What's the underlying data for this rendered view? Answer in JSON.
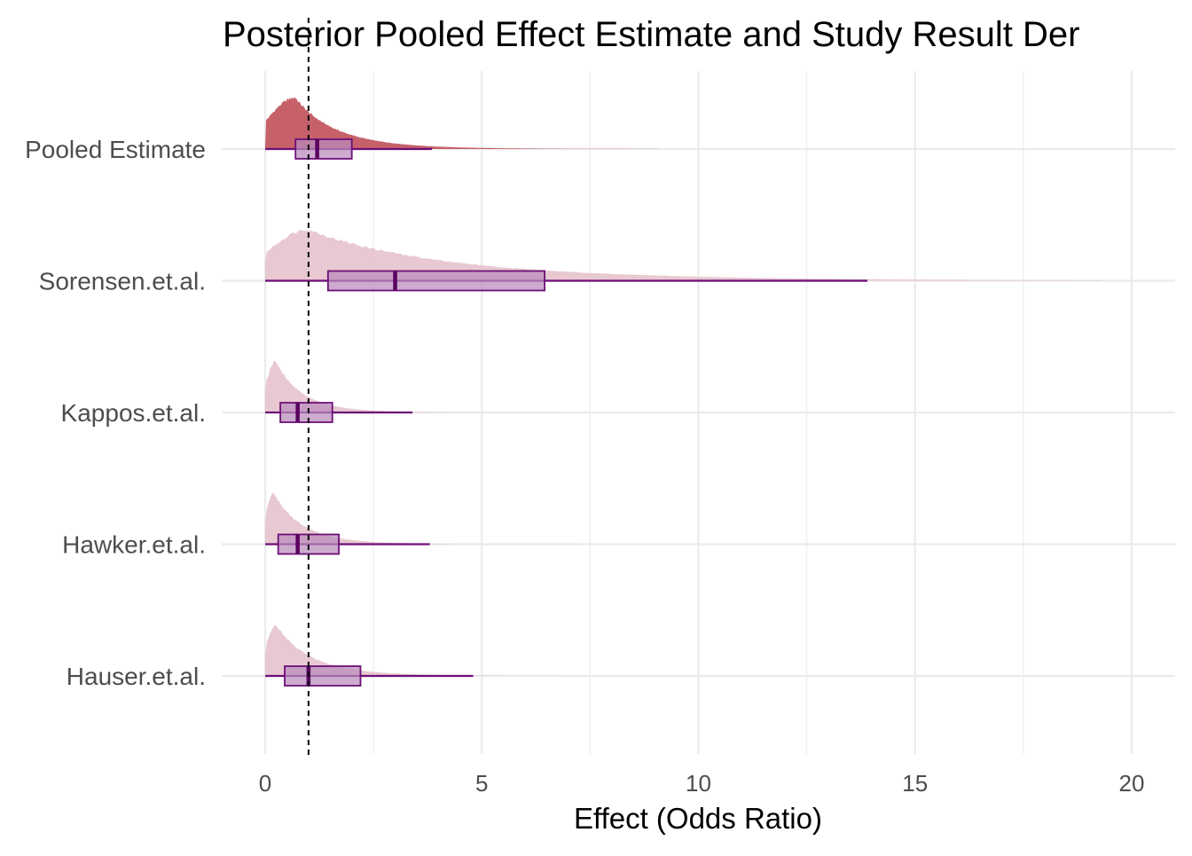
{
  "chart_data": {
    "type": "ridgeline",
    "title": "Posterior Pooled Effect Estimate and Study Result Der",
    "xlabel": "Effect (Odds Ratio)",
    "ylabel": "",
    "xlim": [
      0,
      20.5
    ],
    "x_ticks": [
      0,
      5,
      10,
      15,
      20
    ],
    "reference_line_x": 1,
    "grid": true,
    "series": [
      {
        "name": "Pooled Estimate",
        "highlight": true,
        "density_mode": 0.7,
        "density_right_scale": 0.95,
        "box": {
          "whisker_low": 0,
          "q1": 0.7,
          "median": 1.2,
          "q3": 2.0,
          "whisker_high": 3.85
        },
        "tail_max": 9.1
      },
      {
        "name": "Sorensen.et.al.",
        "highlight": false,
        "density_mode": 1.0,
        "density_right_scale": 3.2,
        "box": {
          "whisker_low": 0,
          "q1": 1.45,
          "median": 3.0,
          "q3": 6.45,
          "whisker_high": 13.9
        },
        "tail_max": 19.3
      },
      {
        "name": "Kappos.et.al.",
        "highlight": false,
        "density_mode": 0.25,
        "density_right_scale": 0.6,
        "box": {
          "whisker_low": 0,
          "q1": 0.35,
          "median": 0.75,
          "q3": 1.55,
          "whisker_high": 3.4
        },
        "tail_max": 11.5
      },
      {
        "name": "Hawker.et.al.",
        "highlight": false,
        "density_mode": 0.2,
        "density_right_scale": 0.65,
        "box": {
          "whisker_low": 0,
          "q1": 0.3,
          "median": 0.75,
          "q3": 1.7,
          "whisker_high": 3.8
        },
        "tail_max": 7.9
      },
      {
        "name": "Hauser.et.al.",
        "highlight": false,
        "density_mode": 0.25,
        "density_right_scale": 0.8,
        "box": {
          "whisker_low": 0,
          "q1": 0.45,
          "median": 1.0,
          "q3": 2.2,
          "whisker_high": 4.8
        },
        "tail_max": 15.3
      }
    ],
    "colors": {
      "highlight_fill": "#c0505a",
      "study_fill": "#e5c3cc",
      "box_fill": "#b88bbd",
      "box_stroke": "#6e0f78",
      "median": "#5a0060",
      "grid": "#ebebeb",
      "ref_line": "#000000"
    }
  }
}
